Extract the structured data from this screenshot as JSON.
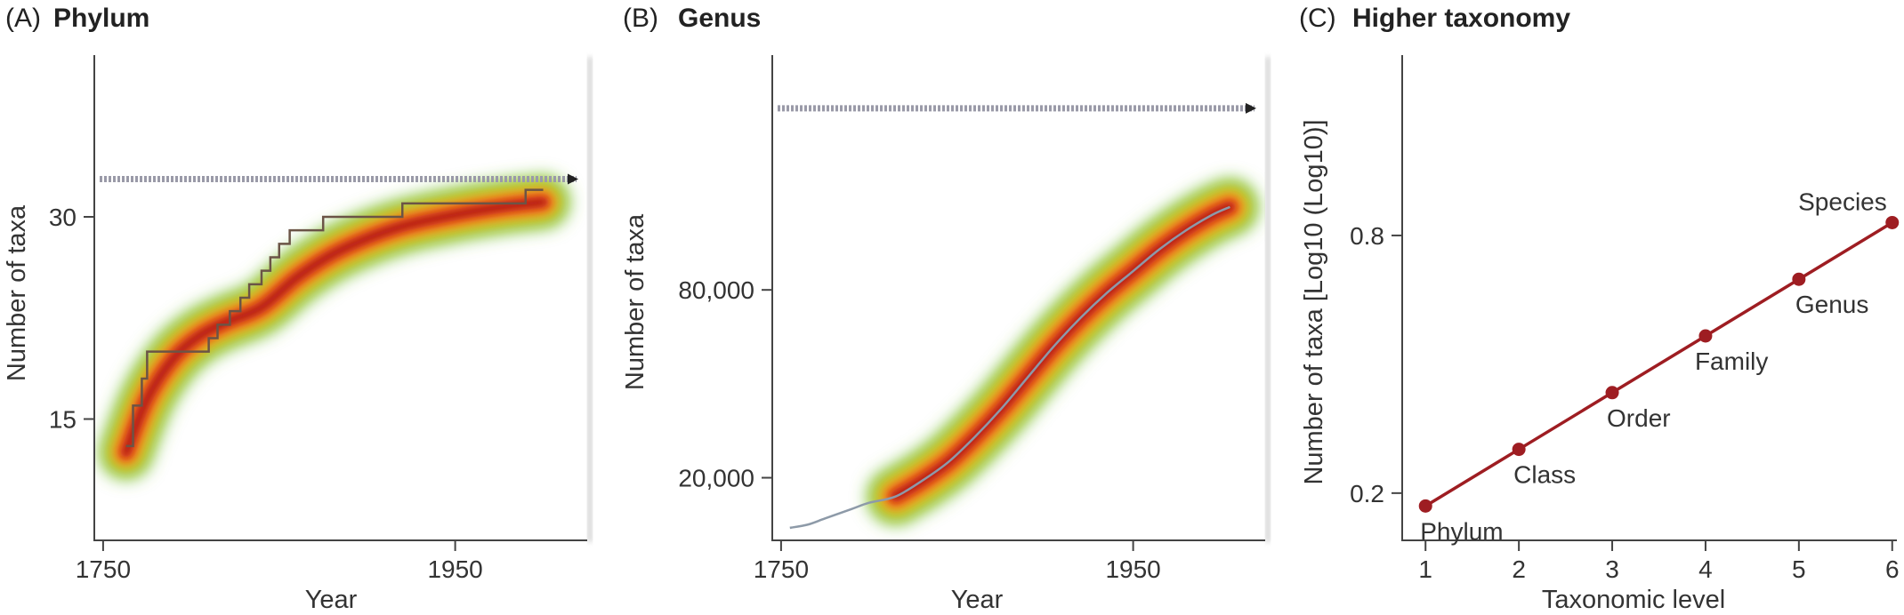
{
  "chart_data": [
    {
      "panel": "(A)",
      "title": "Phylum",
      "type": "line",
      "xlabel": "Year",
      "ylabel": "Number of taxa",
      "xlim": [
        1745,
        2025
      ],
      "ylim": [
        6,
        42
      ],
      "xticks": [
        1750,
        1950
      ],
      "yticks": [
        15,
        30
      ],
      "xtick_labels": [
        "1750",
        "1950"
      ],
      "ytick_labels": [
        "15",
        "30"
      ],
      "asymptote": 32.8,
      "colors": {
        "band_outer": "#7fc241",
        "band_mid": "#f2cc1d",
        "band_inner": "#e8501f",
        "band_core": "#b31d12",
        "observed": "#6b5446",
        "asymptote": "#9a9aa8"
      },
      "band_curve": {
        "x": [
          1763,
          1775,
          1790,
          1805,
          1820,
          1840,
          1860,
          1880,
          1900,
          1920,
          1940,
          1960,
          1980,
          2000
        ],
        "y": [
          12.5,
          16.5,
          19.5,
          21.2,
          22.2,
          23.3,
          25.5,
          27.2,
          28.4,
          29.3,
          29.9,
          30.4,
          30.8,
          31.1
        ]
      },
      "series": [
        {
          "x": [
            1763,
            1767,
            1767,
            1772,
            1772,
            1775,
            1775,
            1790,
            1790,
            1810,
            1810,
            1815,
            1815,
            1822,
            1822,
            1828,
            1828,
            1833,
            1833,
            1840,
            1840,
            1845,
            1845,
            1850,
            1850,
            1856,
            1856,
            1862,
            1862,
            1875,
            1875,
            1900,
            1900,
            1920,
            1920,
            1950,
            1950,
            1990,
            1990,
            2000
          ],
          "y": [
            13,
            13,
            16,
            16,
            18,
            18,
            20,
            20,
            20,
            20,
            21,
            21,
            22,
            22,
            23,
            23,
            24,
            24,
            25,
            25,
            26,
            26,
            27,
            27,
            28,
            28,
            29,
            29,
            29,
            29,
            30,
            30,
            30,
            30,
            31,
            31,
            31,
            31,
            32,
            32
          ]
        }
      ]
    },
    {
      "panel": "(B)",
      "title": "Genus",
      "type": "line",
      "xlabel": "Year",
      "ylabel": "Number of taxa",
      "xlim": [
        1745,
        2025
      ],
      "ylim": [
        0,
        155000
      ],
      "xticks": [
        1750,
        1950
      ],
      "yticks": [
        20000,
        80000
      ],
      "xtick_labels": [
        "1750",
        "1950"
      ],
      "ytick_labels": [
        "20,000",
        "80,000"
      ],
      "asymptote": 138000,
      "colors": {
        "band_outer": "#7fc241",
        "band_mid": "#f2cc1d",
        "band_inner": "#e8501f",
        "band_core": "#b31d12",
        "observed": "#8d9aa8",
        "asymptote": "#9a9aa8"
      },
      "band_curve": {
        "x": [
          1815,
          1830,
          1845,
          1860,
          1875,
          1890,
          1905,
          1920,
          1935,
          1950,
          1965,
          1980,
          1995,
          2005
        ],
        "y": [
          14000,
          19000,
          25000,
          33000,
          42000,
          52000,
          62000,
          71000,
          79000,
          86000,
          93000,
          99000,
          104000,
          106500
        ]
      },
      "series": [
        {
          "x": [
            1755,
            1765,
            1775,
            1790,
            1800,
            1815,
            1830,
            1845,
            1860,
            1875,
            1890,
            1905,
            1920,
            1935,
            1950,
            1965,
            1980,
            1995,
            2005
          ],
          "y": [
            4000,
            5000,
            7000,
            10000,
            12000,
            14000,
            19000,
            25000,
            33000,
            42000,
            52000,
            62000,
            71000,
            79000,
            86000,
            93000,
            99000,
            104000,
            106500
          ]
        }
      ]
    },
    {
      "panel": "(C)",
      "title": "Higher taxonomy",
      "type": "line",
      "xlabel": "Taxonomic level",
      "ylabel": "Number of taxa [Log10 (Log10)]",
      "xlim": [
        0.75,
        6.05
      ],
      "ylim": [
        0.09,
        1.22
      ],
      "xticks": [
        1,
        2,
        3,
        4,
        5,
        6
      ],
      "xtick_labels": [
        "1",
        "2",
        "3",
        "4",
        "5",
        "6"
      ],
      "yticks": [
        0.2,
        0.8
      ],
      "ytick_labels": [
        "0.2",
        "0.8"
      ],
      "colors": {
        "line": "#9e1d22",
        "marker": "#9e1d22"
      },
      "point_labels": [
        "Phylum",
        "Class",
        "Order",
        "Family",
        "Genus",
        "Species"
      ],
      "series": [
        {
          "x": [
            1,
            2,
            3,
            4,
            5,
            6
          ],
          "y": [
            0.17,
            0.302,
            0.434,
            0.566,
            0.698,
            0.83
          ]
        }
      ]
    }
  ]
}
